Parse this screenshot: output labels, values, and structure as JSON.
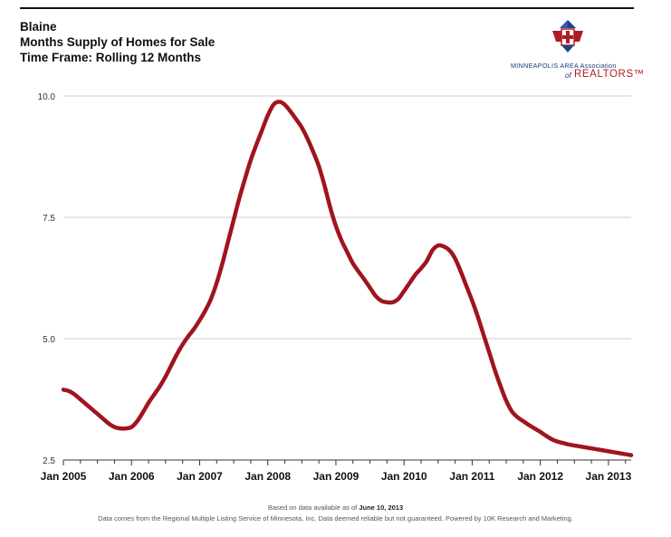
{
  "header": {
    "title": "Blaine",
    "subtitle": "Months Supply of Homes for Sale",
    "timeframe": "Time Frame: Rolling 12 Months"
  },
  "logo": {
    "org_line": "MINNEAPOLIS AREA Association",
    "of_text": "of",
    "realtors": "REALTORS",
    "colors": [
      "#1f3f8a",
      "#b01c22"
    ]
  },
  "footer": {
    "line1_prefix": "Based on data available as of ",
    "line1_date": "June 10, 2013",
    "line2": "Data comes from the Regional Multiple Listing Service of Minnesota, Inc. Data deemed reliable but not guaranteed. Powered by 10K Research and Marketing."
  },
  "chart_data": {
    "type": "line",
    "title": "",
    "xlabel": "",
    "ylabel": "",
    "ylim": [
      2.5,
      10.0
    ],
    "yticks": [
      "2.5",
      "5.0",
      "7.5",
      "10.0"
    ],
    "xticks": [
      "Jan 2005",
      "Jan 2006",
      "Jan 2007",
      "Jan 2008",
      "Jan 2009",
      "Jan 2010",
      "Jan 2011",
      "Jan 2012",
      "Jan 2013"
    ],
    "grid": true,
    "line_color": "#a0141e",
    "series": [
      {
        "name": "",
        "x": [
          "2005-01",
          "2005-02",
          "2005-03",
          "2005-04",
          "2005-05",
          "2005-06",
          "2005-07",
          "2005-08",
          "2005-09",
          "2005-10",
          "2005-11",
          "2005-12",
          "2006-01",
          "2006-02",
          "2006-03",
          "2006-04",
          "2006-05",
          "2006-06",
          "2006-07",
          "2006-08",
          "2006-09",
          "2006-10",
          "2006-11",
          "2006-12",
          "2007-01",
          "2007-02",
          "2007-03",
          "2007-04",
          "2007-05",
          "2007-06",
          "2007-07",
          "2007-08",
          "2007-09",
          "2007-10",
          "2007-11",
          "2007-12",
          "2008-01",
          "2008-02",
          "2008-03",
          "2008-04",
          "2008-05",
          "2008-06",
          "2008-07",
          "2008-08",
          "2008-09",
          "2008-10",
          "2008-11",
          "2008-12",
          "2009-01",
          "2009-02",
          "2009-03",
          "2009-04",
          "2009-05",
          "2009-06",
          "2009-07",
          "2009-08",
          "2009-09",
          "2009-10",
          "2009-11",
          "2009-12",
          "2010-01",
          "2010-02",
          "2010-03",
          "2010-04",
          "2010-05",
          "2010-06",
          "2010-07",
          "2010-08",
          "2010-09",
          "2010-10",
          "2010-11",
          "2010-12",
          "2011-01",
          "2011-02",
          "2011-03",
          "2011-04",
          "2011-05",
          "2011-06",
          "2011-07",
          "2011-08",
          "2011-09",
          "2011-10",
          "2011-11",
          "2011-12",
          "2012-01",
          "2012-02",
          "2012-03",
          "2012-04",
          "2012-05",
          "2012-06",
          "2012-07",
          "2012-08",
          "2012-09",
          "2012-10",
          "2012-11",
          "2012-12",
          "2013-01",
          "2013-02",
          "2013-03",
          "2013-04",
          "2013-05"
        ],
        "values": [
          3.95,
          3.92,
          3.85,
          3.75,
          3.65,
          3.55,
          3.45,
          3.35,
          3.25,
          3.18,
          3.15,
          3.15,
          3.18,
          3.3,
          3.48,
          3.68,
          3.85,
          4.02,
          4.22,
          4.45,
          4.68,
          4.88,
          5.05,
          5.2,
          5.38,
          5.58,
          5.82,
          6.15,
          6.55,
          7.0,
          7.45,
          7.9,
          8.3,
          8.68,
          9.0,
          9.3,
          9.6,
          9.82,
          9.88,
          9.82,
          9.68,
          9.52,
          9.35,
          9.12,
          8.85,
          8.55,
          8.15,
          7.7,
          7.32,
          7.02,
          6.78,
          6.55,
          6.38,
          6.22,
          6.05,
          5.88,
          5.78,
          5.75,
          5.75,
          5.82,
          5.98,
          6.15,
          6.32,
          6.45,
          6.6,
          6.82,
          6.92,
          6.9,
          6.82,
          6.65,
          6.38,
          6.08,
          5.78,
          5.45,
          5.08,
          4.72,
          4.35,
          4.02,
          3.72,
          3.5,
          3.38,
          3.3,
          3.22,
          3.15,
          3.08,
          3.0,
          2.93,
          2.88,
          2.85,
          2.82,
          2.8,
          2.78,
          2.76,
          2.74,
          2.72,
          2.7,
          2.68,
          2.66,
          2.64,
          2.62,
          2.6
        ]
      }
    ]
  }
}
